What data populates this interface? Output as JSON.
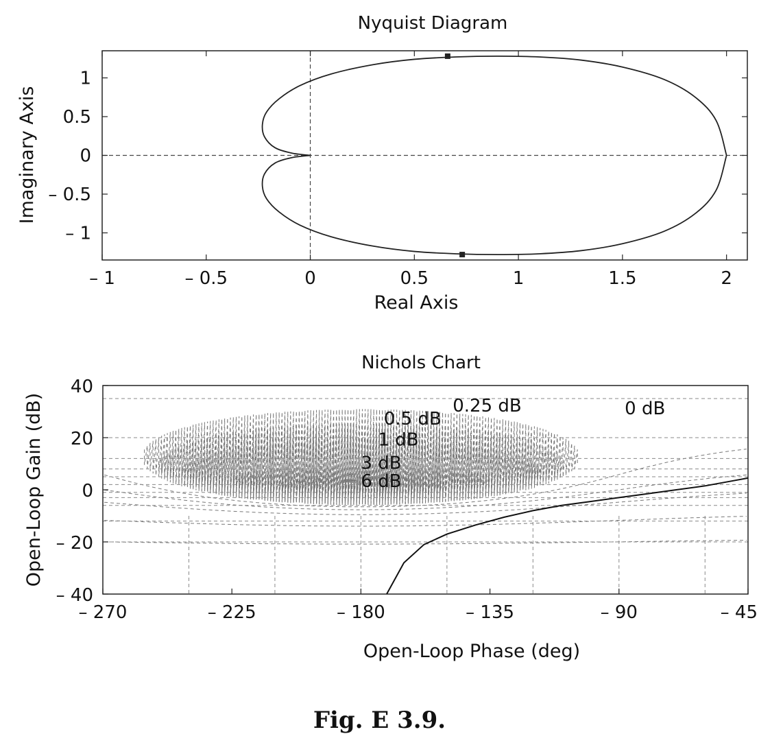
{
  "caption": "Fig. E 3.9.",
  "chart_data": [
    {
      "type": "line",
      "name": "nyquist",
      "title": "Nyquist Diagram",
      "xlabel": "Real Axis",
      "ylabel": "Imaginary Axis",
      "xlim": [
        -1,
        2.1
      ],
      "ylim": [
        -1.35,
        1.35
      ],
      "xticks": [
        -1,
        -0.5,
        0,
        0.5,
        1,
        1.5,
        2
      ],
      "xtick_labels": [
        "– 1",
        "– 0.5",
        "0",
        "0.5",
        "1",
        "1.5",
        "2"
      ],
      "yticks": [
        1,
        0.5,
        0,
        -0.5,
        -1
      ],
      "ytick_labels": [
        "1",
        "0.5",
        "0",
        "– 0.5",
        "– 1"
      ],
      "grid": false,
      "reference_lines": {
        "x": 0,
        "y": 0
      },
      "series": [
        {
          "x": [
            2.0,
            1.95,
            1.85,
            1.7,
            1.5,
            1.3,
            1.1,
            0.9,
            0.7,
            0.5,
            0.3,
            0.1,
            -0.05,
            -0.15,
            -0.21,
            -0.23,
            -0.22,
            -0.17,
            -0.09,
            0.0
          ],
          "y": [
            0.0,
            0.45,
            0.75,
            0.98,
            1.14,
            1.23,
            1.27,
            1.28,
            1.27,
            1.24,
            1.17,
            1.05,
            0.9,
            0.73,
            0.56,
            0.4,
            0.24,
            0.1,
            0.03,
            0.0
          ]
        },
        {
          "x": [
            2.0,
            1.95,
            1.85,
            1.7,
            1.5,
            1.3,
            1.1,
            0.9,
            0.7,
            0.5,
            0.3,
            0.1,
            -0.05,
            -0.15,
            -0.21,
            -0.23,
            -0.22,
            -0.17,
            -0.09,
            0.0
          ],
          "y": [
            0.0,
            -0.45,
            -0.75,
            -0.98,
            -1.14,
            -1.23,
            -1.27,
            -1.28,
            -1.27,
            -1.24,
            -1.17,
            -1.05,
            -0.9,
            -0.73,
            -0.56,
            -0.4,
            -0.24,
            -0.1,
            -0.03,
            0.0
          ]
        }
      ],
      "markers": [
        {
          "x": 0.66,
          "y": 1.28
        },
        {
          "x": 0.73,
          "y": -1.28
        }
      ]
    },
    {
      "type": "line",
      "name": "nichols",
      "title": "Nichols Chart",
      "xlabel": "Open-Loop Phase (deg)",
      "ylabel": "Open-Loop Gain (dB)",
      "xlim": [
        -270,
        -45
      ],
      "ylim": [
        -40,
        40
      ],
      "xticks": [
        -270,
        -225,
        -180,
        -135,
        -90,
        -45
      ],
      "xtick_labels": [
        "– 270",
        "– 225",
        "– 180",
        "– 135",
        "– 90",
        "– 45"
      ],
      "yticks": [
        40,
        20,
        0,
        -20,
        -40
      ],
      "ytick_labels": [
        "40",
        "20",
        "0",
        "– 20",
        "– 40"
      ],
      "grid": true,
      "annotations": [
        {
          "text": "0.25 dB",
          "x": -148,
          "y": 30
        },
        {
          "text": "0 dB",
          "x": -88,
          "y": 29
        },
        {
          "text": "0.5 dB",
          "x": -172,
          "y": 25
        },
        {
          "text": "1 dB",
          "x": -174,
          "y": 17
        },
        {
          "text": "3 dB",
          "x": -180,
          "y": 8
        },
        {
          "text": "6 dB",
          "x": -180,
          "y": 1
        }
      ],
      "series": [
        {
          "x": [
            -171,
            -165,
            -158,
            -150,
            -140,
            -130,
            -120,
            -110,
            -100,
            -90,
            -80,
            -70,
            -60,
            -50,
            -45
          ],
          "y": [
            -40,
            -28,
            -21,
            -17,
            -13.5,
            -10.5,
            -8,
            -6,
            -4.5,
            -3,
            -1.5,
            0,
            1.5,
            3.5,
            4.5
          ]
        }
      ]
    }
  ]
}
